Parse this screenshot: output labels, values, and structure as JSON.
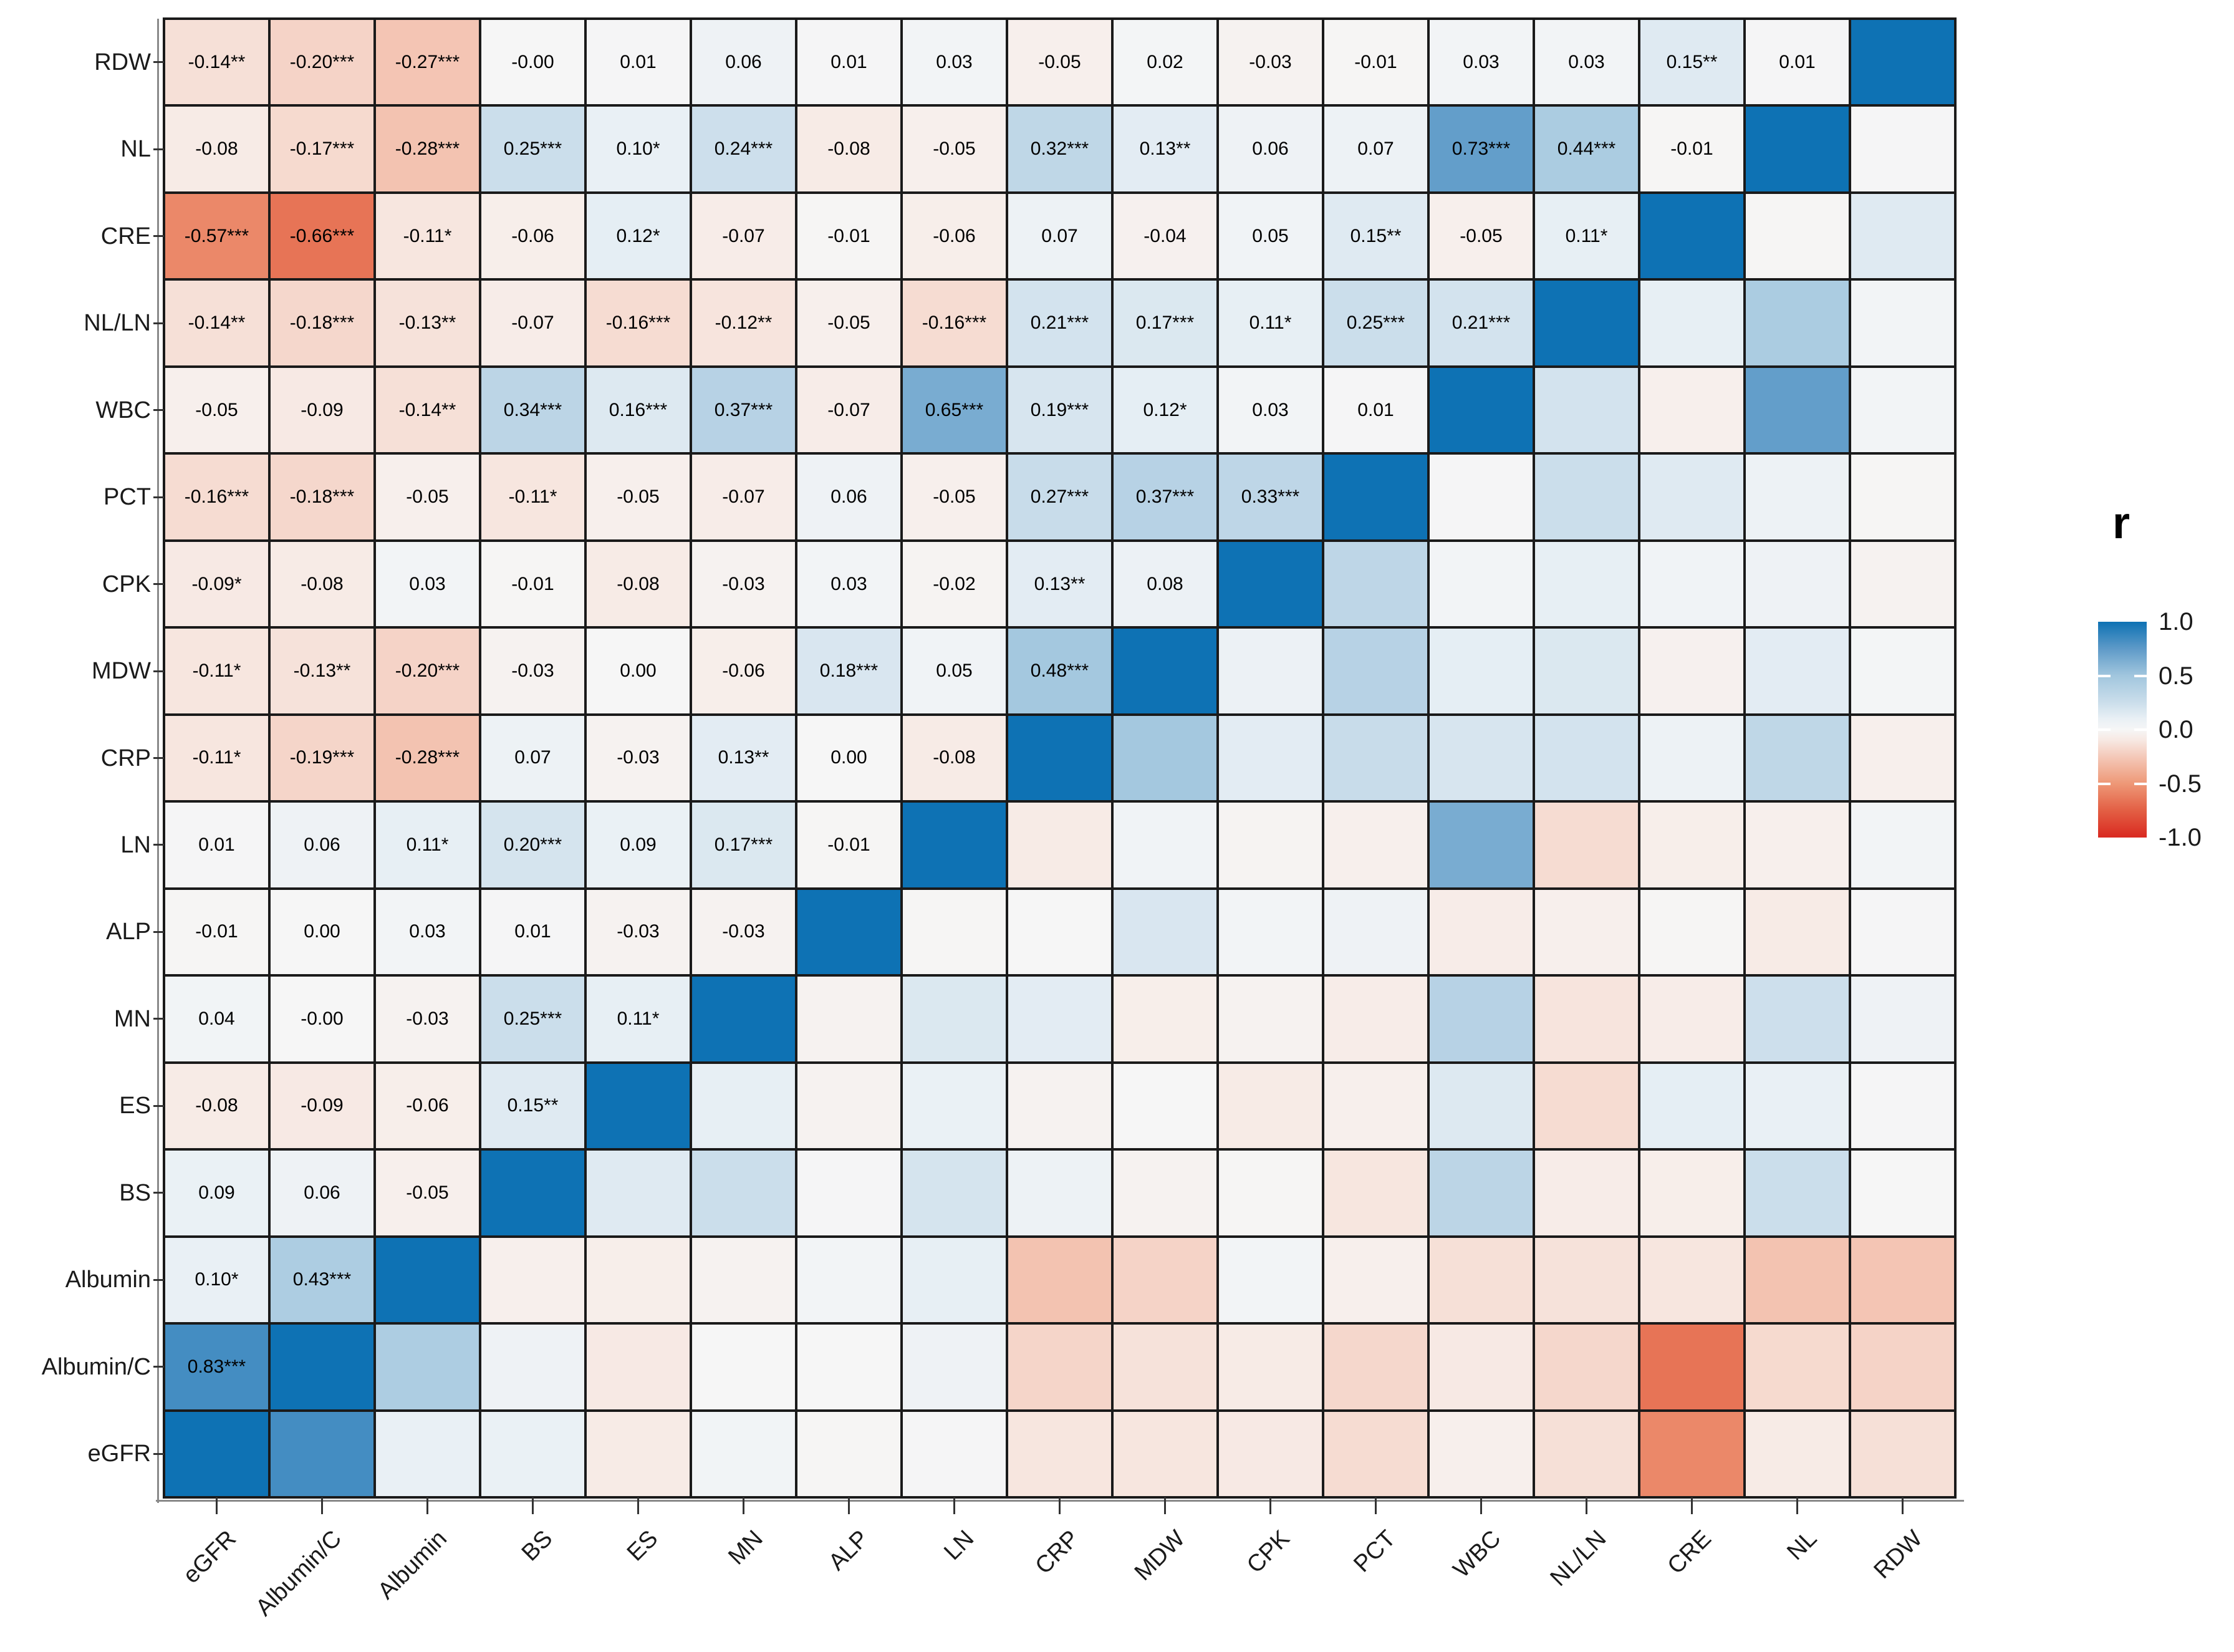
{
  "chart_data": {
    "type": "heatmap",
    "subtype": "correlation-matrix",
    "legend": {
      "title": "r",
      "ticks": [
        "1.0",
        "0.5",
        "0.0",
        "-0.5",
        "-1.0"
      ],
      "range": [
        -1,
        1
      ],
      "position": "right",
      "gradient_top_color": "#0E72B4",
      "gradient_mid_color": "#F6F6F6",
      "gradient_bottom_color": "#D92920"
    },
    "row_order_top_to_bottom": [
      "RDW",
      "NL",
      "CRE",
      "NL/LN",
      "WBC",
      "PCT",
      "CPK",
      "MDW",
      "CRP",
      "LN",
      "ALP",
      "MN",
      "ES",
      "BS",
      "Albumin",
      "Albumin/C",
      "eGFR"
    ],
    "col_order_left_to_right": [
      "eGFR",
      "Albumin/C",
      "Albumin",
      "BS",
      "ES",
      "MN",
      "ALP",
      "LN",
      "CRP",
      "MDW",
      "CPK",
      "PCT",
      "WBC",
      "NL/LN",
      "CRE",
      "NL",
      "RDW"
    ],
    "rows": [
      {
        "name": "RDW",
        "values": [
          "-0.14**",
          "-0.20***",
          "-0.27***",
          "-0.00",
          "0.01",
          "0.06",
          "0.01",
          "0.03",
          "-0.05",
          "0.02",
          "-0.03",
          "-0.01",
          "0.03",
          "0.03",
          "0.15**",
          "0.01"
        ]
      },
      {
        "name": "NL",
        "values": [
          "-0.08",
          "-0.17***",
          "-0.28***",
          "0.25***",
          "0.10*",
          "0.24***",
          "-0.08",
          "-0.05",
          "0.32***",
          "0.13**",
          "0.06",
          "0.07",
          "0.73***",
          "0.44***",
          "-0.01"
        ]
      },
      {
        "name": "CRE",
        "values": [
          "-0.57***",
          "-0.66***",
          "-0.11*",
          "-0.06",
          "0.12*",
          "-0.07",
          "-0.01",
          "-0.06",
          "0.07",
          "-0.04",
          "0.05",
          "0.15**",
          "-0.05",
          "0.11*"
        ]
      },
      {
        "name": "NL/LN",
        "values": [
          "-0.14**",
          "-0.18***",
          "-0.13**",
          "-0.07",
          "-0.16***",
          "-0.12**",
          "-0.05",
          "-0.16***",
          "0.21***",
          "0.17***",
          "0.11*",
          "0.25***",
          "0.21***"
        ]
      },
      {
        "name": "WBC",
        "values": [
          "-0.05",
          "-0.09",
          "-0.14**",
          "0.34***",
          "0.16***",
          "0.37***",
          "-0.07",
          "0.65***",
          "0.19***",
          "0.12*",
          "0.03",
          "0.01"
        ]
      },
      {
        "name": "PCT",
        "values": [
          "-0.16***",
          "-0.18***",
          "-0.05",
          "-0.11*",
          "-0.05",
          "-0.07",
          "0.06",
          "-0.05",
          "0.27***",
          "0.37***",
          "0.33***"
        ]
      },
      {
        "name": "CPK",
        "values": [
          "-0.09*",
          "-0.08",
          "0.03",
          "-0.01",
          "-0.08",
          "-0.03",
          "0.03",
          "-0.02",
          "0.13**",
          "0.08"
        ]
      },
      {
        "name": "MDW",
        "values": [
          "-0.11*",
          "-0.13**",
          "-0.20***",
          "-0.03",
          "0.00",
          "-0.06",
          "0.18***",
          "0.05",
          "0.48***"
        ]
      },
      {
        "name": "CRP",
        "values": [
          "-0.11*",
          "-0.19***",
          "-0.28***",
          "0.07",
          "-0.03",
          "0.13**",
          "0.00",
          "-0.08"
        ]
      },
      {
        "name": "LN",
        "values": [
          "0.01",
          "0.06",
          "0.11*",
          "0.20***",
          "0.09",
          "0.17***",
          "-0.01"
        ]
      },
      {
        "name": "ALP",
        "values": [
          "-0.01",
          "0.00",
          "0.03",
          "0.01",
          "-0.03",
          "-0.03"
        ]
      },
      {
        "name": "MN",
        "values": [
          "0.04",
          "-0.00",
          "-0.03",
          "0.25***",
          "0.11*"
        ]
      },
      {
        "name": "ES",
        "values": [
          "-0.08",
          "-0.09",
          "-0.06",
          "0.15**"
        ]
      },
      {
        "name": "BS",
        "values": [
          "0.09",
          "0.06",
          "-0.05"
        ]
      },
      {
        "name": "Albumin",
        "values": [
          "0.10*",
          "0.43***"
        ]
      },
      {
        "name": "Albumin/C",
        "values": [
          "0.83***"
        ]
      },
      {
        "name": "eGFR",
        "values": []
      }
    ],
    "colors": {
      "diagonal": "#0E72B4",
      "cell_border": "#1a1a1a",
      "scale_stops": [
        [
          -1.0,
          "#D92920"
        ],
        [
          -0.75,
          "#E35F44"
        ],
        [
          -0.5,
          "#EE9877"
        ],
        [
          -0.25,
          "#F4C9B9"
        ],
        [
          -0.1,
          "#F7E8E2"
        ],
        [
          0.0,
          "#F6F6F6"
        ],
        [
          0.1,
          "#E9F0F5"
        ],
        [
          0.25,
          "#CBDEEB"
        ],
        [
          0.5,
          "#A1C6DE"
        ],
        [
          0.75,
          "#5E9AC8"
        ],
        [
          1.0,
          "#0E72B4"
        ]
      ]
    }
  }
}
